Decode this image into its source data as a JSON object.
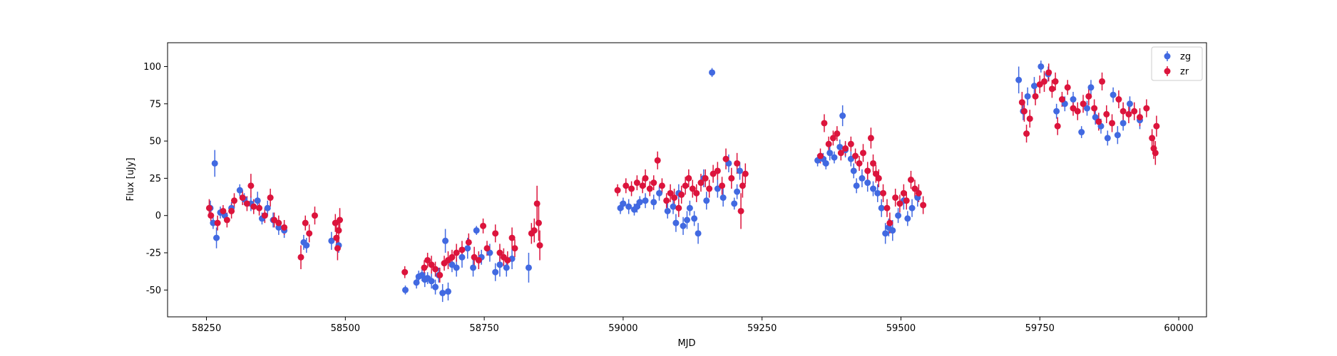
{
  "chart_data": {
    "type": "scatter",
    "xlabel": "MJD",
    "ylabel": "Flux [uJy]",
    "xlim": [
      58180,
      60050
    ],
    "ylim": [
      -68,
      116
    ],
    "xticks": [
      58250,
      58500,
      58750,
      59000,
      59250,
      59500,
      59750,
      60000
    ],
    "yticks": [
      -50,
      -25,
      0,
      25,
      50,
      75,
      100
    ],
    "grid": false,
    "legend_position": "top-right",
    "series": [
      {
        "name": "zg",
        "color": "#4169E1",
        "points": [
          [
            58257,
            5,
            5
          ],
          [
            58262,
            -5,
            4
          ],
          [
            58265,
            35,
            9
          ],
          [
            58268,
            -15,
            7
          ],
          [
            58275,
            2,
            4
          ],
          [
            58283,
            0,
            4
          ],
          [
            58295,
            5,
            4
          ],
          [
            58310,
            17,
            4
          ],
          [
            58318,
            11,
            4
          ],
          [
            58330,
            8,
            5
          ],
          [
            58342,
            10,
            6
          ],
          [
            58350,
            -2,
            4
          ],
          [
            58360,
            5,
            5
          ],
          [
            58370,
            -3,
            5
          ],
          [
            58380,
            -8,
            5
          ],
          [
            58390,
            -10,
            5
          ],
          [
            58425,
            -18,
            5
          ],
          [
            58430,
            -20,
            5
          ],
          [
            58475,
            -17,
            6
          ],
          [
            58488,
            -20,
            5
          ],
          [
            58608,
            -50,
            3
          ],
          [
            58628,
            -45,
            4
          ],
          [
            58632,
            -41,
            4
          ],
          [
            58638,
            -40,
            4
          ],
          [
            58643,
            -43,
            5
          ],
          [
            58648,
            -42,
            4
          ],
          [
            58655,
            -44,
            5
          ],
          [
            58662,
            -48,
            5
          ],
          [
            58668,
            -40,
            5
          ],
          [
            58675,
            -52,
            6
          ],
          [
            58680,
            -17,
            8
          ],
          [
            58685,
            -51,
            6
          ],
          [
            58692,
            -33,
            5
          ],
          [
            58700,
            -35,
            6
          ],
          [
            58710,
            -28,
            7
          ],
          [
            58720,
            -22,
            7
          ],
          [
            58730,
            -35,
            6
          ],
          [
            58736,
            -10,
            3
          ],
          [
            58745,
            -28,
            5
          ],
          [
            58760,
            -25,
            6
          ],
          [
            58770,
            -38,
            6
          ],
          [
            58778,
            -33,
            8
          ],
          [
            58790,
            -35,
            6
          ],
          [
            58800,
            -29,
            7
          ],
          [
            58830,
            -35,
            10
          ],
          [
            58995,
            5,
            4
          ],
          [
            59000,
            8,
            4
          ],
          [
            59010,
            6,
            5
          ],
          [
            59020,
            4,
            4
          ],
          [
            59025,
            6,
            4
          ],
          [
            59030,
            9,
            4
          ],
          [
            59040,
            10,
            5
          ],
          [
            59055,
            9,
            5
          ],
          [
            59065,
            15,
            5
          ],
          [
            59080,
            3,
            5
          ],
          [
            59090,
            6,
            5
          ],
          [
            59095,
            -5,
            6
          ],
          [
            59100,
            15,
            6
          ],
          [
            59108,
            -7,
            6
          ],
          [
            59115,
            -3,
            6
          ],
          [
            59120,
            5,
            5
          ],
          [
            59128,
            -2,
            5
          ],
          [
            59135,
            -12,
            7
          ],
          [
            59145,
            25,
            6
          ],
          [
            59150,
            10,
            6
          ],
          [
            59160,
            96,
            3
          ],
          [
            59170,
            18,
            6
          ],
          [
            59180,
            12,
            6
          ],
          [
            59190,
            35,
            6
          ],
          [
            59200,
            8,
            4
          ],
          [
            59205,
            16,
            5
          ],
          [
            59210,
            30,
            6
          ],
          [
            59350,
            37,
            4
          ],
          [
            59360,
            38,
            4
          ],
          [
            59365,
            35,
            4
          ],
          [
            59372,
            42,
            5
          ],
          [
            59380,
            39,
            4
          ],
          [
            59390,
            46,
            5
          ],
          [
            59395,
            67,
            7
          ],
          [
            59400,
            44,
            5
          ],
          [
            59410,
            38,
            5
          ],
          [
            59415,
            30,
            5
          ],
          [
            59420,
            20,
            5
          ],
          [
            59430,
            25,
            6
          ],
          [
            59440,
            22,
            6
          ],
          [
            59450,
            18,
            5
          ],
          [
            59458,
            15,
            6
          ],
          [
            59465,
            5,
            6
          ],
          [
            59472,
            -12,
            7
          ],
          [
            59478,
            -8,
            6
          ],
          [
            59485,
            -10,
            7
          ],
          [
            59495,
            0,
            5
          ],
          [
            59505,
            10,
            6
          ],
          [
            59512,
            -2,
            5
          ],
          [
            59520,
            5,
            6
          ],
          [
            59530,
            12,
            6
          ],
          [
            59712,
            91,
            9
          ],
          [
            59720,
            70,
            6
          ],
          [
            59728,
            80,
            6
          ],
          [
            59740,
            87,
            6
          ],
          [
            59752,
            100,
            4
          ],
          [
            59765,
            95,
            5
          ],
          [
            59780,
            70,
            5
          ],
          [
            59795,
            75,
            5
          ],
          [
            59810,
            78,
            5
          ],
          [
            59825,
            56,
            4
          ],
          [
            59835,
            72,
            5
          ],
          [
            59842,
            86,
            5
          ],
          [
            59850,
            66,
            5
          ],
          [
            59860,
            60,
            5
          ],
          [
            59872,
            52,
            5
          ],
          [
            59882,
            81,
            5
          ],
          [
            59890,
            54,
            6
          ],
          [
            59900,
            62,
            5
          ],
          [
            59912,
            75,
            5
          ],
          [
            59930,
            64,
            6
          ]
        ]
      },
      {
        "name": "zr",
        "color": "#DC143C",
        "points": [
          [
            58255,
            5,
            6
          ],
          [
            58258,
            0,
            5
          ],
          [
            58270,
            -5,
            5
          ],
          [
            58280,
            3,
            4
          ],
          [
            58287,
            -3,
            5
          ],
          [
            58295,
            3,
            5
          ],
          [
            58300,
            10,
            5
          ],
          [
            58315,
            12,
            5
          ],
          [
            58323,
            8,
            5
          ],
          [
            58330,
            20,
            8
          ],
          [
            58335,
            6,
            5
          ],
          [
            58345,
            5,
            5
          ],
          [
            58355,
            0,
            5
          ],
          [
            58365,
            12,
            6
          ],
          [
            58372,
            -3,
            5
          ],
          [
            58380,
            -5,
            5
          ],
          [
            58390,
            -8,
            5
          ],
          [
            58420,
            -28,
            8
          ],
          [
            58428,
            -5,
            5
          ],
          [
            58435,
            -12,
            6
          ],
          [
            58445,
            0,
            6
          ],
          [
            58482,
            -5,
            6
          ],
          [
            58484,
            -15,
            8
          ],
          [
            58486,
            -22,
            8
          ],
          [
            58488,
            -10,
            8
          ],
          [
            58490,
            -3,
            8
          ],
          [
            58607,
            -38,
            4
          ],
          [
            58642,
            -35,
            5
          ],
          [
            58648,
            -30,
            5
          ],
          [
            58655,
            -33,
            6
          ],
          [
            58662,
            -36,
            5
          ],
          [
            58670,
            -40,
            5
          ],
          [
            58678,
            -32,
            5
          ],
          [
            58685,
            -30,
            6
          ],
          [
            58692,
            -28,
            5
          ],
          [
            58700,
            -25,
            6
          ],
          [
            58710,
            -23,
            6
          ],
          [
            58722,
            -18,
            6
          ],
          [
            58732,
            -28,
            7
          ],
          [
            58740,
            -30,
            6
          ],
          [
            58748,
            -7,
            5
          ],
          [
            58755,
            -22,
            5
          ],
          [
            58770,
            -12,
            6
          ],
          [
            58778,
            -25,
            6
          ],
          [
            58785,
            -28,
            6
          ],
          [
            58792,
            -30,
            6
          ],
          [
            58800,
            -15,
            7
          ],
          [
            58805,
            -22,
            6
          ],
          [
            58835,
            -12,
            7
          ],
          [
            58840,
            -10,
            8
          ],
          [
            58845,
            8,
            12
          ],
          [
            58848,
            -5,
            12
          ],
          [
            58850,
            -20,
            10
          ],
          [
            58990,
            17,
            4
          ],
          [
            59005,
            20,
            5
          ],
          [
            59015,
            18,
            5
          ],
          [
            59025,
            22,
            5
          ],
          [
            59035,
            20,
            5
          ],
          [
            59040,
            25,
            6
          ],
          [
            59048,
            18,
            5
          ],
          [
            59055,
            22,
            5
          ],
          [
            59062,
            37,
            6
          ],
          [
            59070,
            20,
            5
          ],
          [
            59078,
            10,
            5
          ],
          [
            59085,
            15,
            6
          ],
          [
            59092,
            12,
            6
          ],
          [
            59100,
            5,
            6
          ],
          [
            59105,
            14,
            6
          ],
          [
            59112,
            20,
            6
          ],
          [
            59118,
            25,
            6
          ],
          [
            59125,
            18,
            6
          ],
          [
            59132,
            15,
            6
          ],
          [
            59140,
            22,
            6
          ],
          [
            59148,
            25,
            6
          ],
          [
            59155,
            18,
            6
          ],
          [
            59162,
            28,
            6
          ],
          [
            59170,
            30,
            6
          ],
          [
            59178,
            20,
            6
          ],
          [
            59185,
            38,
            7
          ],
          [
            59195,
            25,
            7
          ],
          [
            59205,
            35,
            7
          ],
          [
            59212,
            3,
            12
          ],
          [
            59215,
            20,
            8
          ],
          [
            59220,
            28,
            7
          ],
          [
            59355,
            40,
            5
          ],
          [
            59362,
            62,
            6
          ],
          [
            59370,
            48,
            5
          ],
          [
            59378,
            52,
            5
          ],
          [
            59385,
            55,
            5
          ],
          [
            59392,
            42,
            5
          ],
          [
            59400,
            45,
            5
          ],
          [
            59410,
            48,
            5
          ],
          [
            59418,
            40,
            5
          ],
          [
            59425,
            35,
            5
          ],
          [
            59432,
            42,
            6
          ],
          [
            59440,
            30,
            6
          ],
          [
            59446,
            52,
            7
          ],
          [
            59450,
            35,
            6
          ],
          [
            59455,
            28,
            6
          ],
          [
            59460,
            25,
            6
          ],
          [
            59468,
            15,
            6
          ],
          [
            59475,
            5,
            6
          ],
          [
            59480,
            -5,
            7
          ],
          [
            59490,
            12,
            6
          ],
          [
            59498,
            8,
            6
          ],
          [
            59505,
            15,
            6
          ],
          [
            59510,
            10,
            6
          ],
          [
            59518,
            24,
            6
          ],
          [
            59525,
            18,
            6
          ],
          [
            59532,
            15,
            6
          ],
          [
            59540,
            7,
            6
          ],
          [
            59718,
            76,
            7
          ],
          [
            59722,
            70,
            7
          ],
          [
            59726,
            55,
            6
          ],
          [
            59732,
            65,
            6
          ],
          [
            59742,
            80,
            6
          ],
          [
            59750,
            88,
            6
          ],
          [
            59758,
            90,
            7
          ],
          [
            59766,
            96,
            6
          ],
          [
            59772,
            85,
            6
          ],
          [
            59778,
            90,
            6
          ],
          [
            59782,
            60,
            6
          ],
          [
            59790,
            78,
            5
          ],
          [
            59800,
            86,
            5
          ],
          [
            59810,
            72,
            5
          ],
          [
            59818,
            70,
            6
          ],
          [
            59828,
            75,
            6
          ],
          [
            59838,
            80,
            6
          ],
          [
            59848,
            72,
            6
          ],
          [
            59856,
            63,
            6
          ],
          [
            59862,
            90,
            6
          ],
          [
            59870,
            68,
            6
          ],
          [
            59880,
            62,
            6
          ],
          [
            59892,
            78,
            6
          ],
          [
            59900,
            70,
            6
          ],
          [
            59910,
            68,
            6
          ],
          [
            59920,
            70,
            6
          ],
          [
            59930,
            66,
            6
          ],
          [
            59942,
            72,
            6
          ],
          [
            59952,
            52,
            6
          ],
          [
            59955,
            45,
            7
          ],
          [
            59958,
            42,
            8
          ],
          [
            59960,
            60,
            7
          ]
        ]
      }
    ]
  }
}
